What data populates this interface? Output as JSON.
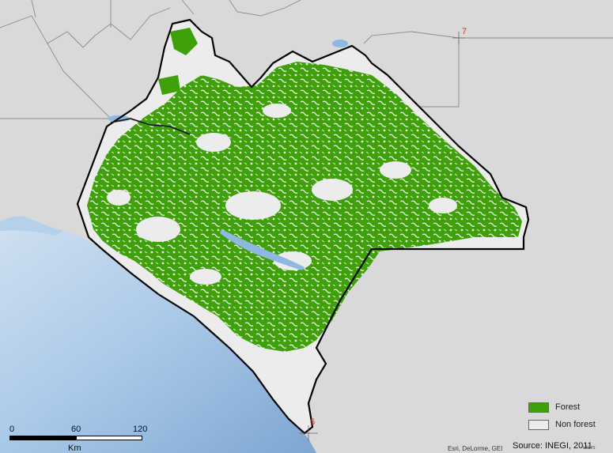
{
  "legend": {
    "items": [
      {
        "label": "Forest",
        "color": "#3fa10a"
      },
      {
        "label": "Non forest",
        "color": "#ececec"
      }
    ]
  },
  "scalebar": {
    "ticks": [
      "0",
      "60",
      "120"
    ],
    "unit": "Km"
  },
  "source": "Source: INEGI, 2011",
  "attribution": "Esri, DeLorme, GEI",
  "attribution_tail": "utors",
  "grid_labels": [
    "7",
    "6"
  ],
  "colors": {
    "forest": "#3fa10a",
    "nonforest": "#ececec",
    "ocean": "#a9c8e8",
    "land_bg": "#d9d9d9",
    "boundary": "#000000"
  }
}
